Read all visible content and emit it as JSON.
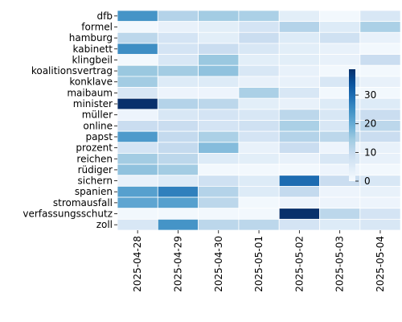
{
  "chart_data": {
    "type": "heatmap",
    "title": "",
    "xlabel": "",
    "ylabel": "",
    "x_categories": [
      "2025-04-28",
      "2025-04-29",
      "2025-04-30",
      "2025-05-01",
      "2025-05-02",
      "2025-05-03",
      "2025-05-04"
    ],
    "y_categories": [
      "dfb",
      "formel",
      "hamburg",
      "kabinett",
      "klingbeil",
      "koalitionsvertrag",
      "konklave",
      "maibaum",
      "minister",
      "müller",
      "online",
      "papst",
      "prozent",
      "reichen",
      "rüdiger",
      "sichern",
      "spanien",
      "stromausfall",
      "verfassungsschutz",
      "zoll"
    ],
    "values": [
      [
        24,
        12,
        14,
        13,
        4,
        1,
        6
      ],
      [
        1,
        3,
        4,
        7,
        12,
        5,
        13
      ],
      [
        11,
        7,
        4,
        9,
        5,
        8,
        3
      ],
      [
        25,
        7,
        9,
        6,
        4,
        3,
        1
      ],
      [
        1,
        6,
        15,
        4,
        4,
        3,
        9
      ],
      [
        15,
        14,
        16,
        6,
        3,
        1,
        1
      ],
      [
        14,
        5,
        5,
        3,
        3,
        6,
        3
      ],
      [
        6,
        2,
        2,
        13,
        6,
        1,
        1
      ],
      [
        39,
        12,
        11,
        4,
        3,
        5,
        5
      ],
      [
        2,
        6,
        7,
        6,
        11,
        6,
        9
      ],
      [
        9,
        9,
        7,
        8,
        13,
        6,
        11
      ],
      [
        23,
        10,
        13,
        7,
        12,
        11,
        9
      ],
      [
        7,
        10,
        17,
        3,
        9,
        2,
        3
      ],
      [
        14,
        11,
        5,
        4,
        3,
        6,
        3
      ],
      [
        16,
        14,
        1,
        1,
        1,
        2,
        1
      ],
      [
        3,
        5,
        8,
        5,
        30,
        9,
        6
      ],
      [
        22,
        27,
        12,
        5,
        10,
        2,
        3
      ],
      [
        21,
        22,
        11,
        1,
        2,
        2,
        2
      ],
      [
        1,
        1,
        1,
        1,
        39,
        11,
        7
      ],
      [
        6,
        24,
        11,
        11,
        7,
        5,
        6
      ]
    ],
    "colormap": "Blues",
    "colorbar": {
      "min": 0,
      "max": 39,
      "ticks": [
        0,
        10,
        20,
        30
      ]
    },
    "grid_lines": true,
    "grid_color": "#ffffff"
  }
}
